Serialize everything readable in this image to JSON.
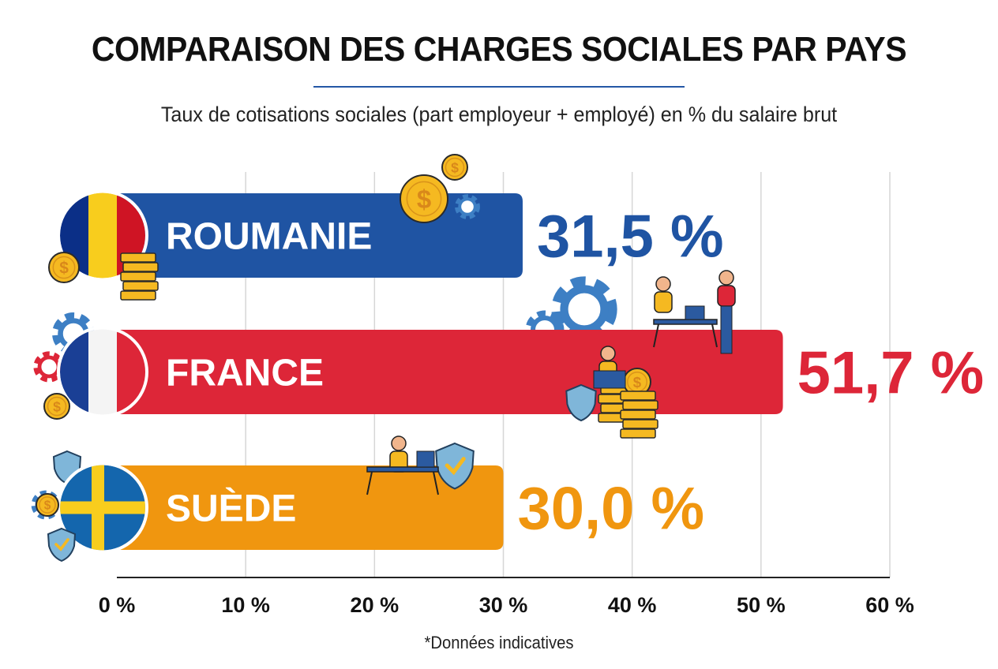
{
  "title": "COMPARAISON DES CHARGES SOCIALES PAR PAYS",
  "subtitle": "Taux de cotisations sociales (part employeur + employé) en % du salaire brut",
  "footnote": "*Données indicatives",
  "chart_data": {
    "type": "bar",
    "orientation": "horizontal",
    "categories": [
      "ROUMANIE",
      "FRANCE",
      "SUÈDE"
    ],
    "values": [
      31.5,
      51.7,
      30.0
    ],
    "value_labels": [
      "31,5 %",
      "51,7 %",
      "30,0 %"
    ],
    "colors": [
      "#1f54a3",
      "#dd2638",
      "#f0960f"
    ],
    "flags": [
      "romania-flag-icon",
      "france-flag-icon",
      "sweden-flag-icon"
    ],
    "xlim": [
      0,
      60
    ],
    "xticks": [
      0,
      10,
      20,
      30,
      40,
      50,
      60
    ],
    "xtick_labels": [
      "0 %",
      "10 %",
      "20 %",
      "30 %",
      "40 %",
      "50 %",
      "60 %"
    ],
    "grid": true,
    "legend": "none"
  }
}
